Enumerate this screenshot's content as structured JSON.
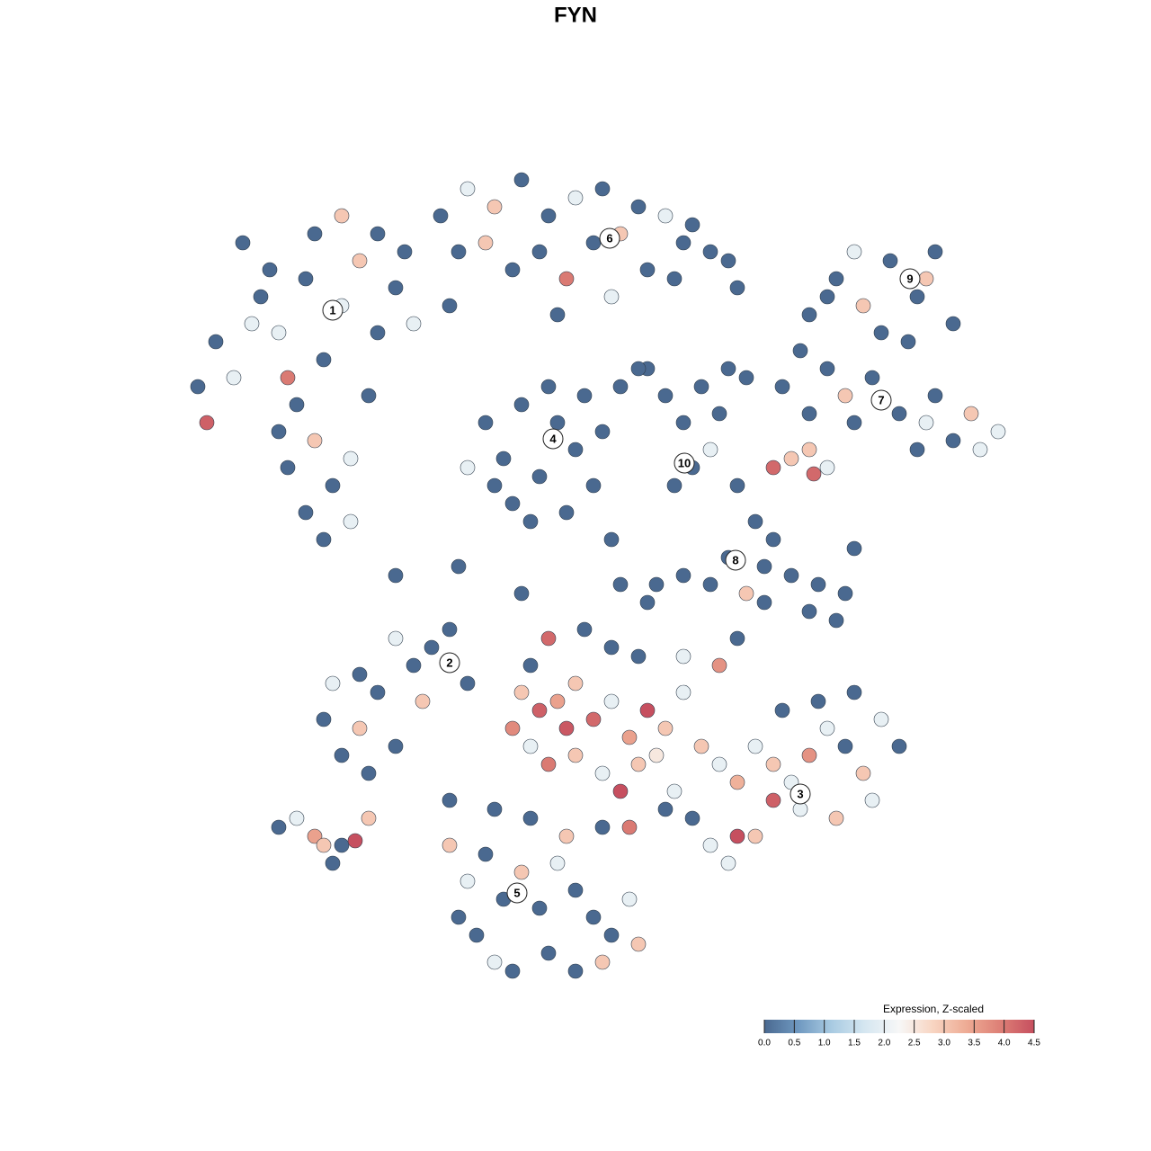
{
  "chart_data": {
    "type": "scatter",
    "title": "FYN",
    "xlim": [
      -45,
      50
    ],
    "ylim": [
      -47,
      47
    ],
    "x": [
      -40,
      -38,
      -35,
      -33,
      -30,
      -28,
      -26,
      -24,
      -22,
      -20,
      -31,
      -29,
      -32,
      -27,
      -25,
      -30,
      -28,
      -34,
      -36,
      -23,
      -32,
      -42,
      -18,
      -19,
      -26,
      -22,
      -29,
      -37,
      -25,
      -33,
      -41,
      -15,
      -12,
      -9,
      -6,
      -3,
      0,
      3,
      -13,
      -10,
      -7,
      -4,
      -1,
      2,
      5,
      7,
      10,
      13,
      15,
      8,
      11,
      17,
      4,
      -2,
      12,
      18,
      -14,
      -10,
      -8,
      -6,
      -4,
      -2,
      0,
      2,
      -7,
      -12,
      -3,
      1,
      -5,
      -1,
      3,
      -9,
      10,
      12,
      14,
      13,
      15,
      11,
      8,
      16,
      5,
      7,
      17,
      19,
      26,
      29,
      32,
      35,
      38,
      40,
      42,
      34,
      31,
      37,
      39,
      28,
      25,
      28,
      30,
      33,
      36,
      39,
      42,
      45,
      47,
      40,
      31,
      23,
      26,
      44,
      38,
      22,
      26.5,
      26,
      24,
      28,
      18,
      20,
      22,
      21,
      24,
      27,
      30,
      31,
      26,
      29,
      17,
      15,
      12,
      9,
      19,
      21,
      -28,
      -26,
      -24,
      -22,
      -20,
      -24,
      -18,
      -16,
      -14,
      -12,
      -20,
      -27,
      -17,
      -23,
      -33,
      -31,
      -29,
      -28,
      -26,
      -24.5,
      -23,
      -27,
      -6,
      -4,
      -2,
      0,
      2,
      4,
      6,
      8,
      10,
      12,
      -5,
      -3,
      0,
      3,
      5,
      7,
      -7,
      -1,
      9,
      11,
      14,
      16,
      18,
      20,
      22,
      24,
      26,
      28,
      30,
      32,
      34,
      36,
      33,
      29,
      25,
      22,
      20,
      18,
      15,
      17,
      13,
      10,
      6,
      3,
      1,
      4,
      -3,
      7,
      12,
      16,
      -5,
      18,
      23,
      27,
      31,
      -14,
      -12,
      -10,
      -8,
      -6,
      -4,
      -2,
      0,
      2,
      4,
      6,
      -11,
      -9,
      -7,
      -3,
      0,
      3,
      7,
      -13,
      -1,
      -5,
      -9,
      -14,
      -20,
      -13,
      5,
      8,
      -6,
      4
    ],
    "y": [
      26,
      22,
      31,
      27,
      33,
      24,
      30,
      35,
      27,
      32,
      19,
      15,
      12,
      10,
      13,
      7,
      4,
      34,
      28,
      20,
      22,
      21,
      28,
      36,
      40,
      38,
      38,
      37,
      6,
      16,
      17,
      40,
      43,
      41,
      44,
      40,
      42,
      43,
      36,
      37,
      34,
      36,
      33,
      37,
      38,
      41,
      40,
      39,
      36,
      34,
      33,
      35,
      31,
      29,
      37,
      32,
      30,
      17,
      13,
      19,
      11,
      17,
      14,
      10,
      8,
      12,
      21,
      20,
      6,
      7,
      16,
      10,
      20,
      17,
      21,
      12,
      14,
      10,
      23,
      18,
      21,
      23,
      23,
      22,
      29,
      33,
      30,
      35,
      31,
      36,
      28,
      27,
      36,
      26,
      33,
      31,
      25,
      23,
      20,
      22,
      18,
      17,
      15,
      14,
      16,
      20,
      17,
      21,
      18,
      18,
      14,
      12,
      11.3,
      14,
      13,
      12,
      10,
      6,
      4,
      1,
      0,
      -1,
      -2,
      3,
      -4,
      -5,
      2,
      -1,
      0,
      -1,
      -2,
      -3,
      -16,
      -20,
      -17,
      -13,
      -19,
      -11,
      -10,
      -8,
      -6,
      -12,
      -7,
      -12,
      -14,
      -22,
      -28,
      -27,
      -29,
      -30,
      -30,
      -29.5,
      -27,
      -32,
      -13,
      -15,
      -14,
      -12,
      -16,
      -14,
      -18,
      -15,
      -17,
      -13,
      -19,
      -21,
      -20,
      -22,
      -24,
      -21,
      -17,
      -17,
      -20,
      -24,
      -19,
      -21,
      -23,
      -19,
      -21,
      -23,
      -20,
      -17,
      -19,
      -22,
      -16,
      -19,
      -25,
      -27,
      -26,
      -25,
      -29,
      -29,
      -30,
      -32,
      -27,
      -26,
      -28,
      -28,
      -6,
      -8,
      -7,
      -9,
      -9,
      -10,
      -10,
      -7,
      -15,
      -14,
      -13,
      -30,
      -34,
      -31,
      -36,
      -33,
      -37,
      -32,
      -35,
      -38,
      -40,
      -36,
      -40,
      -43,
      -44,
      -42,
      -44,
      -43,
      -41,
      -38,
      -29,
      -27,
      -26,
      -25,
      0,
      1,
      -1,
      -3,
      -2,
      4
    ],
    "values": [
      0,
      2,
      0,
      2,
      0,
      0,
      2,
      3,
      0,
      0,
      0,
      3,
      0,
      0,
      2,
      0,
      0,
      0,
      2,
      0,
      4,
      0,
      2,
      0,
      3,
      0,
      0,
      0,
      2,
      0,
      4.3,
      0,
      2,
      3,
      0,
      0,
      2,
      0,
      0,
      3,
      0,
      0,
      4,
      0,
      3,
      0,
      2,
      0,
      0,
      0,
      0,
      0,
      2,
      0,
      0,
      0,
      0,
      0,
      0,
      0,
      0,
      0,
      0,
      0,
      0,
      2,
      0,
      0,
      0,
      0,
      0,
      0,
      0,
      0,
      0,
      0,
      2,
      0,
      0,
      0,
      0,
      0,
      0,
      0,
      0,
      0,
      3,
      0,
      0,
      0,
      0,
      0,
      2,
      0,
      3,
      0,
      0,
      0,
      3,
      0,
      0,
      2,
      0,
      2,
      2,
      0,
      0,
      0,
      0,
      3,
      0,
      4.2,
      4.2,
      3,
      3,
      2,
      0,
      0,
      0,
      0,
      0,
      0,
      0,
      0,
      0,
      0,
      0,
      0,
      0,
      0,
      3,
      0,
      0,
      0,
      3,
      0,
      0,
      0,
      0,
      0,
      0,
      0,
      2,
      2,
      3,
      0,
      0,
      2,
      3.5,
      3,
      0,
      4.5,
      3,
      0,
      3,
      4.3,
      3.5,
      3,
      4.2,
      2,
      3.5,
      4.5,
      3,
      2,
      2,
      4,
      3,
      2,
      4.5,
      3,
      3.8,
      4.4,
      2.5,
      2,
      3,
      2,
      3.3,
      2,
      3,
      2,
      3.7,
      2,
      0,
      3,
      2,
      0,
      2,
      3,
      2,
      4.3,
      3,
      4.5,
      2,
      2,
      0,
      0,
      4,
      0,
      0,
      0,
      4.2,
      0,
      2,
      3.7,
      0,
      0,
      0,
      0,
      0,
      3,
      2,
      0,
      0,
      3,
      0,
      2,
      0,
      0,
      0,
      2,
      0,
      2,
      0,
      0,
      0,
      3,
      3,
      0,
      3,
      0,
      0,
      0,
      0,
      0,
      0,
      0,
      0,
      0
    ],
    "annotations": [
      {
        "text": "1",
        "x": -27,
        "y": 29.5
      },
      {
        "text": "2",
        "x": -14,
        "y": -9.7
      },
      {
        "text": "3",
        "x": 25,
        "y": -24.3
      },
      {
        "text": "4",
        "x": -2.5,
        "y": 15.2
      },
      {
        "text": "5",
        "x": -6.5,
        "y": -35.3
      },
      {
        "text": "6",
        "x": 3.8,
        "y": 37.5
      },
      {
        "text": "7",
        "x": 34,
        "y": 19.5
      },
      {
        "text": "8",
        "x": 17.8,
        "y": 1.7
      },
      {
        "text": "9",
        "x": 37.2,
        "y": 33
      },
      {
        "text": "10",
        "x": 12.1,
        "y": 12.5
      }
    ],
    "colorbar": {
      "title": "Expression, Z-scaled",
      "lim": [
        0,
        4.5
      ],
      "colors": [
        "#4a6990",
        "#6f98c0",
        "#a9cbe2",
        "#d6e7f1",
        "#f7f7f7",
        "#f8d5c2",
        "#eeab94",
        "#dd7f76",
        "#c64f5f"
      ],
      "ticks": [
        {
          "value": 0,
          "label": "0.0"
        },
        0.5,
        {
          "value": 1,
          "label": "1.0"
        },
        1.5,
        {
          "value": 2,
          "label": "2.0"
        },
        2.5,
        {
          "value": 3,
          "label": "3.0"
        },
        3.5,
        {
          "value": 4,
          "label": "4.0"
        },
        4.5
      ]
    }
  }
}
